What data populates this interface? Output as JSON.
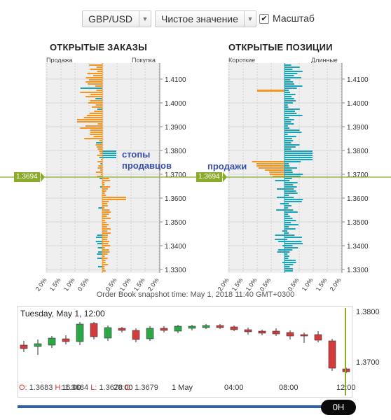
{
  "controls": {
    "pair": "GBP/USD",
    "mode": "Чистое значение",
    "scale_label": "Масштаб",
    "scale_checked": true
  },
  "orders": {
    "title": "ОТКРЫТЫЕ ЗАКАЗЫ",
    "left_label": "Продажа",
    "right_label": "Покупка",
    "annotation_line1": "стопы",
    "annotation_line2": "продавцов"
  },
  "positions": {
    "title": "ОТКРЫТЫЕ ПОЗИЦИИ",
    "left_label": "Короткие",
    "right_label": "Длинные",
    "annotation": "продажи"
  },
  "current_price": "1.3694",
  "price_ticks": [
    "1.4100",
    "1.4000",
    "1.3900",
    "1.3800",
    "1.3700",
    "1.3600",
    "1.3500",
    "1.3400",
    "1.3300"
  ],
  "pct_ticks": [
    "2.0%",
    "1.5%",
    "1.0%",
    "0.5%",
    "0.5%",
    "1.0%",
    "1.5%",
    "2.0%"
  ],
  "snapshot_text": "Order Book snapshot time: May 1, 2018 11:40 GMT+0300",
  "candles": {
    "date_label": "Tuesday, May 1, 12:00",
    "ohlc": {
      "o_label": "O:",
      "o": "1.3683",
      "h_label": "H:",
      "h": "1.3684",
      "l_label": "L:",
      "l": "1.3678",
      "c_label": "C:",
      "c": "1.3679"
    },
    "y_ticks": [
      "1.3800",
      "1.3700"
    ],
    "x_ticks": [
      "16:00",
      "20:00",
      "1 May",
      "04:00",
      "08:00",
      "12:00"
    ],
    "up_color": "#2aa845",
    "down_color": "#d43a3a"
  },
  "timeline": {
    "now_label": "0Н"
  },
  "colors": {
    "orange": "#f7941d",
    "teal": "#17a3b8",
    "price_line": "#8aac2a",
    "grid_bg": "#efefef",
    "annotation": "#3a50a8"
  }
}
